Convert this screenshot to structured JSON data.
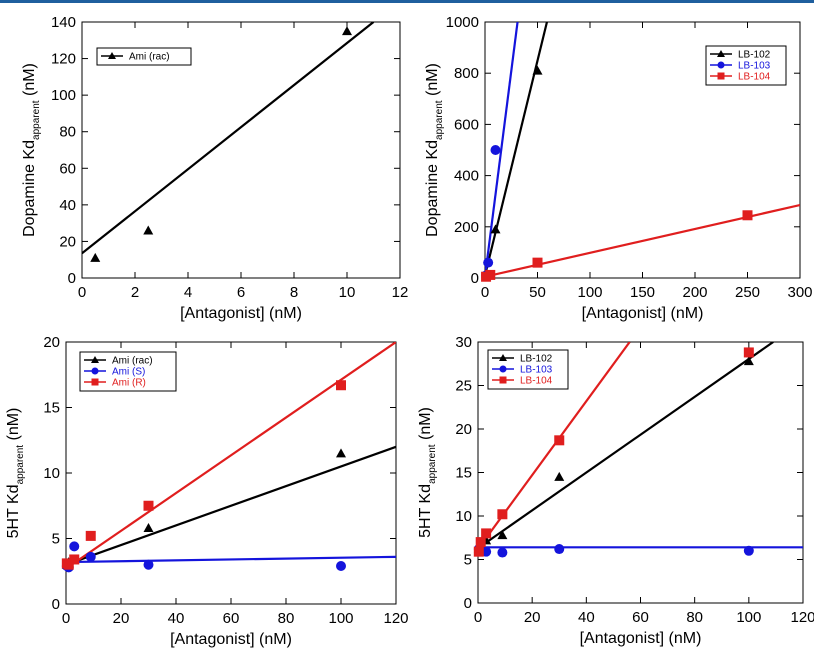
{
  "colors": {
    "black": "#000000",
    "blue": "#1414dc",
    "red": "#e01e1e",
    "header_bar": "#1f5f9e"
  },
  "chart_data": [
    {
      "type": "scatter",
      "xlabel": "[Antagonist] (nM)",
      "ylabel": "Dopamine Kd",
      "ylabel_subscript": "apparent",
      "ylabel_unit": "(nM)",
      "xlim": [
        0,
        12
      ],
      "ylim": [
        0,
        140
      ],
      "xticks": [
        0,
        2,
        4,
        6,
        8,
        10,
        12
      ],
      "yticks": [
        0,
        20,
        40,
        60,
        80,
        100,
        120,
        140
      ],
      "legend_position": "top-left",
      "series": [
        {
          "name": "Ami (rac)",
          "color": "#000000",
          "marker": "triangle",
          "points": [
            [
              0.5,
              11
            ],
            [
              2.5,
              26
            ],
            [
              10,
              135
            ]
          ],
          "fit": [
            [
              0,
              13.5
            ],
            [
              11,
              140
            ]
          ]
        }
      ]
    },
    {
      "type": "scatter",
      "xlabel": "[Antagonist] (nM)",
      "ylabel": "Dopamine Kd",
      "ylabel_subscript": "apparent",
      "ylabel_unit": "(nM)",
      "xlim": [
        0,
        300
      ],
      "ylim": [
        0,
        1000
      ],
      "xticks": [
        0,
        50,
        100,
        150,
        200,
        250,
        300
      ],
      "yticks": [
        0,
        200,
        400,
        600,
        800,
        1000
      ],
      "legend_position": "top-right",
      "series": [
        {
          "name": "LB-102",
          "color": "#000000",
          "marker": "triangle",
          "points": [
            [
              1,
              15
            ],
            [
              10,
              190
            ],
            [
              50,
              810
            ]
          ],
          "fit": [
            [
              0,
              10
            ],
            [
              59,
              1000
            ]
          ]
        },
        {
          "name": "LB-103",
          "color": "#1414dc",
          "marker": "circle",
          "points": [
            [
              1,
              10
            ],
            [
              3,
              60
            ],
            [
              10,
              500
            ]
          ],
          "fit": [
            [
              0,
              5
            ],
            [
              31,
              1000
            ]
          ]
        },
        {
          "name": "LB-104",
          "color": "#e01e1e",
          "marker": "square",
          "points": [
            [
              1,
              5
            ],
            [
              5,
              12
            ],
            [
              50,
              60
            ],
            [
              250,
              245
            ]
          ],
          "fit": [
            [
              0,
              5
            ],
            [
              300,
              285
            ]
          ]
        }
      ]
    },
    {
      "type": "scatter",
      "xlabel": "[Antagonist] (nM)",
      "ylabel": "5HT Kd",
      "ylabel_subscript": "apparent",
      "ylabel_unit": "(nM)",
      "xlim": [
        0,
        120
      ],
      "ylim": [
        0,
        20
      ],
      "xticks": [
        0,
        20,
        40,
        60,
        80,
        100,
        120
      ],
      "yticks": [
        0,
        5,
        10,
        15,
        20
      ],
      "legend_position": "top-left",
      "series": [
        {
          "name": "Ami (rac)",
          "color": "#000000",
          "marker": "triangle",
          "points": [
            [
              0.3,
              3.0
            ],
            [
              1,
              3.2
            ],
            [
              3,
              3.4
            ],
            [
              30,
              5.8
            ],
            [
              100,
              11.5
            ]
          ],
          "fit": [
            [
              0,
              3.0
            ],
            [
              120,
              12.0
            ]
          ]
        },
        {
          "name": "Ami (S)",
          "color": "#1414dc",
          "marker": "circle",
          "points": [
            [
              0.3,
              2.9
            ],
            [
              1,
              2.8
            ],
            [
              3,
              4.4
            ],
            [
              9,
              3.6
            ],
            [
              30,
              3.0
            ],
            [
              100,
              2.9
            ]
          ],
          "fit": [
            [
              0,
              3.2
            ],
            [
              120,
              3.6
            ]
          ]
        },
        {
          "name": "Ami (R)",
          "color": "#e01e1e",
          "marker": "square",
          "points": [
            [
              0.3,
              3.1
            ],
            [
              1,
              3.0
            ],
            [
              3,
              3.4
            ],
            [
              9,
              5.2
            ],
            [
              30,
              7.5
            ],
            [
              100,
              16.7
            ]
          ],
          "fit": [
            [
              0,
              2.7
            ],
            [
              120,
              20.0
            ]
          ]
        }
      ]
    },
    {
      "type": "scatter",
      "xlabel": "[Antagonist] (nM)",
      "ylabel": "5HT Kd",
      "ylabel_subscript": "apparent",
      "ylabel_unit": "(nM)",
      "xlim": [
        0,
        120
      ],
      "ylim": [
        0,
        30
      ],
      "xticks": [
        0,
        20,
        40,
        60,
        80,
        100,
        120
      ],
      "yticks": [
        0,
        5,
        10,
        15,
        20,
        25,
        30
      ],
      "legend_position": "top-left",
      "series": [
        {
          "name": "LB-102",
          "color": "#000000",
          "marker": "triangle",
          "points": [
            [
              0.3,
              6.2
            ],
            [
              1,
              6.8
            ],
            [
              3,
              7.2
            ],
            [
              9,
              7.8
            ],
            [
              30,
              14.5
            ],
            [
              100,
              27.8
            ]
          ],
          "fit": [
            [
              0,
              6.3
            ],
            [
              109,
              30
            ]
          ]
        },
        {
          "name": "LB-103",
          "color": "#1414dc",
          "marker": "circle",
          "points": [
            [
              0.3,
              6.2
            ],
            [
              1,
              6.3
            ],
            [
              3,
              5.9
            ],
            [
              9,
              5.8
            ],
            [
              30,
              6.2
            ],
            [
              100,
              6.0
            ]
          ],
          "fit": [
            [
              0,
              6.4
            ],
            [
              120,
              6.4
            ]
          ]
        },
        {
          "name": "LB-104",
          "color": "#e01e1e",
          "marker": "square",
          "points": [
            [
              0.3,
              5.9
            ],
            [
              1,
              7.0
            ],
            [
              3,
              8.0
            ],
            [
              9,
              10.2
            ],
            [
              30,
              18.7
            ],
            [
              100,
              28.8
            ]
          ],
          "fit": [
            [
              0,
              6.2
            ],
            [
              56,
              30
            ]
          ]
        }
      ]
    }
  ]
}
